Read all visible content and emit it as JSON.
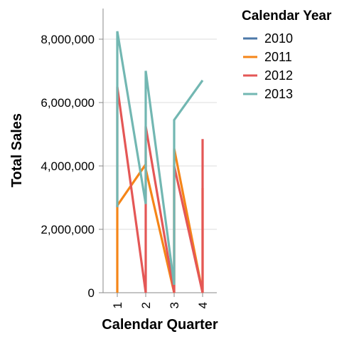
{
  "chart_data": {
    "type": "line",
    "title": "",
    "xlabel": "Calendar Quarter",
    "ylabel": "Total Sales",
    "categories": [
      "1",
      "2",
      "3",
      "4"
    ],
    "ylim": [
      0,
      8000000
    ],
    "yticks": [
      "0",
      "2,000,000",
      "4,000,000",
      "6,000,000",
      "8,000,000"
    ],
    "grid": true,
    "legend": {
      "title": "Calendar Year",
      "placement": "right",
      "entries": [
        "2010",
        "2011",
        "2012",
        "2013"
      ]
    },
    "series": [
      {
        "name": "2010",
        "color": "#4c78a8",
        "points": []
      },
      {
        "name": "2011",
        "color": "#f58518",
        "points": [
          {
            "x": "1",
            "y": 0
          },
          {
            "x": "1",
            "y": 2750000
          },
          {
            "x": "2",
            "y": 4050000
          },
          {
            "x": "2",
            "y": 3900000
          },
          {
            "x": "3",
            "y": 0
          },
          {
            "x": "3",
            "y": 4550000
          },
          {
            "x": "4",
            "y": 0
          },
          {
            "x": "4",
            "y": 3300000
          }
        ]
      },
      {
        "name": "2012",
        "color": "#e45756",
        "points": [
          {
            "x": "1",
            "y": 2700000
          },
          {
            "x": "1",
            "y": 6500000
          },
          {
            "x": "2",
            "y": 0
          },
          {
            "x": "2",
            "y": 5250000
          },
          {
            "x": "3",
            "y": 0
          },
          {
            "x": "3",
            "y": 4000000
          },
          {
            "x": "4",
            "y": 0
          },
          {
            "x": "4",
            "y": 4850000
          }
        ]
      },
      {
        "name": "2013",
        "color": "#72b7b2",
        "points": [
          {
            "x": "1",
            "y": 2700000
          },
          {
            "x": "1",
            "y": 8250000
          },
          {
            "x": "2",
            "y": 2800000
          },
          {
            "x": "2",
            "y": 7000000
          },
          {
            "x": "3",
            "y": 250000
          },
          {
            "x": "3",
            "y": 5450000
          },
          {
            "x": "4",
            "y": 6700000
          }
        ]
      }
    ]
  }
}
